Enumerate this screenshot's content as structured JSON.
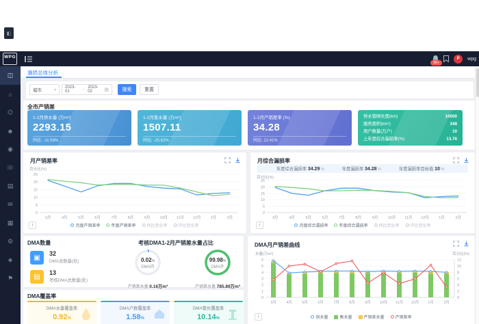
{
  "widget_glyph": "◧",
  "logo": {
    "text": "WPG",
    "sub": "· · · · · ·"
  },
  "topbar": {
    "badge": "99+",
    "username": "wpg",
    "avatar_initial": "P"
  },
  "sidebar": {
    "items": [
      {
        "name": "dashboard",
        "glyph": "◫"
      },
      {
        "name": "home",
        "glyph": "⌂"
      },
      {
        "name": "network",
        "glyph": "⌬"
      },
      {
        "name": "user",
        "glyph": "☻"
      },
      {
        "name": "monitor",
        "glyph": "◉"
      },
      {
        "name": "support",
        "glyph": "☏"
      },
      {
        "name": "report",
        "glyph": "▤"
      },
      {
        "name": "mail",
        "glyph": "✉"
      },
      {
        "name": "archive",
        "glyph": "▦"
      },
      {
        "name": "settings",
        "glyph": "⚙"
      },
      {
        "name": "assets",
        "glyph": "◈"
      },
      {
        "name": "flag",
        "glyph": "⚑"
      }
    ]
  },
  "tab": {
    "label": "漏损总体分析"
  },
  "filters": {
    "city_label": "城市",
    "caret": "▾",
    "date_start": "2023-01",
    "date_sep": "→",
    "date_end": "2023-02",
    "calendar_glyph": "▦",
    "search": "搜索",
    "reset": "重置"
  },
  "kpi": {
    "section_title": "全市产销差",
    "cards": [
      {
        "label": "1-2月供水量 (万m³)",
        "value": "2293.15",
        "sub": "同比: -11.58%"
      },
      {
        "label": "1-2月售水量 (万m³)",
        "value": "1507.11",
        "sub": "同比: -25.62%"
      },
      {
        "label": "1-2月产销差率 (%)",
        "value": "34.28",
        "sub": "同比: 12.41%"
      }
    ],
    "info_card": {
      "rows": [
        {
          "label": "供水管网长度(km)",
          "value": "10000"
        },
        {
          "label": "服务面积(km²)",
          "value": "348"
        },
        {
          "label": "用户数量(万户)",
          "value": "10"
        },
        {
          "label": "上年度综合漏损率(%)",
          "value": "13.76"
        }
      ]
    }
  },
  "charts": {
    "left": {
      "title": "月产销差率",
      "ylabel": "百分比(%)",
      "info": "i"
    },
    "right": {
      "title": "月综合漏损率",
      "ylabel": "百分比(%)",
      "info": "i",
      "stats": [
        {
          "label": "年度综合漏损率",
          "value": "34.29",
          "unit": "%"
        },
        {
          "label": "年度漏损率",
          "value": "34.28",
          "unit": "%"
        },
        {
          "label": "年度漏损率目标值",
          "value": "10",
          "unit": "%"
        }
      ]
    }
  },
  "dma": {
    "count": {
      "title": "DMA数量",
      "items": [
        {
          "value": "32",
          "label": "DMA总数量(处)",
          "color": "#409eff",
          "glyph": "▣"
        },
        {
          "value": "13",
          "label": "考核DMA总数量(处)",
          "color": "#fdc330",
          "glyph": "▤"
        }
      ]
    },
    "ratio": {
      "title": "考核DMA1-2月产销差水量占比",
      "donuts": [
        {
          "pct": 0.02,
          "value": "0.02",
          "unit": "%",
          "label": "DMA内",
          "sub_label": "产销差水量",
          "sub_value": "0.16万m³",
          "color": "#4a8af4"
        },
        {
          "pct": 99.98,
          "value": "99.98",
          "unit": "%",
          "label": "DMA外",
          "sub_label": "产销差水量",
          "sub_value": "785.89万m³",
          "color": "#4cc06c"
        }
      ]
    },
    "coverage": {
      "title": "DMA覆盖率",
      "cards": [
        {
          "label": "DMA水量覆盖率",
          "value": "0.92",
          "unit": "%",
          "color": "#f5b723",
          "bg": "#fefbf0",
          "wm": "drop"
        },
        {
          "label": "DMA户数覆盖率",
          "value": "1.58",
          "unit": "%",
          "color": "#459df5",
          "bg": "#f2f8fe",
          "wm": "house"
        },
        {
          "label": "DMA管长覆盖率",
          "value": "10.14",
          "unit": "%",
          "color": "#27b89f",
          "bg": "#effbf8",
          "wm": "pipe"
        }
      ]
    },
    "curve": {
      "title": "DMA月产销差曲线",
      "ylabel_left": "水量(万m³)",
      "ylabel_right": "百分比(%)",
      "info": "i"
    }
  },
  "chart_data": [
    {
      "type": "line",
      "title": "月产销差率",
      "ylabel": "百分比(%)",
      "ylim": [
        0,
        25
      ],
      "ystep": 5,
      "categories": [
        "3月",
        "4月",
        "5月",
        "6月",
        "7月",
        "8月",
        "9月",
        "10月",
        "11月",
        "12月",
        "1月",
        "2月"
      ],
      "series": [
        {
          "name": "月度产销差率",
          "color": "#4f9ef0",
          "values": [
            21,
            17.3,
            13.5,
            17.5,
            19,
            19,
            17,
            16,
            15.5,
            11.5,
            12.5,
            13
          ]
        },
        {
          "name": "年度产销差率",
          "color": "#7fd17f",
          "values": [
            21.6,
            20.5,
            19.5,
            18,
            18.4,
            18.4,
            18,
            17.9,
            16,
            13.5,
            11,
            12
          ]
        }
      ],
      "legend": [
        {
          "label": "月度产销差率",
          "color": "#4f9ef0",
          "shape": "line",
          "off": false
        },
        {
          "label": "年度产销差率",
          "color": "#7fd17f",
          "shape": "line",
          "off": false
        },
        {
          "label": "同比变化率",
          "color": "#c0c4cc",
          "shape": "line",
          "off": true
        },
        {
          "label": "环比变化率",
          "color": "#c0c4cc",
          "shape": "line",
          "off": true
        }
      ]
    },
    {
      "type": "line",
      "title": "月综合漏损率",
      "ylabel": "百分比(%)",
      "ylim": [
        0,
        25
      ],
      "ystep": 5,
      "categories": [
        "3月",
        "4月",
        "5月",
        "6月",
        "7月",
        "8月",
        "9月",
        "10月",
        "11月",
        "12月",
        "1月",
        "2月"
      ],
      "series": [
        {
          "name": "月度综合漏损率",
          "color": "#4f9ef0",
          "values": [
            19.5,
            15,
            13.5,
            17,
            19,
            19,
            17,
            16,
            15.5,
            11.5,
            12.5,
            13
          ]
        },
        {
          "name": "年度综合漏损率",
          "color": "#7fd17f",
          "values": [
            20.3,
            19.5,
            18.5,
            16.8,
            17,
            17.4,
            17.2,
            16.5,
            15.5,
            12.5,
            11.5,
            11.8
          ]
        }
      ],
      "legend": [
        {
          "label": "月度综合漏损率",
          "color": "#4f9ef0",
          "shape": "line",
          "off": false
        },
        {
          "label": "年度综合漏损率",
          "color": "#7fd17f",
          "shape": "line",
          "off": false
        },
        {
          "label": "同比变化率",
          "color": "#c0c4cc",
          "shape": "line",
          "off": true
        },
        {
          "label": "环比变化率",
          "color": "#c0c4cc",
          "shape": "line",
          "off": true
        }
      ]
    },
    {
      "type": "combo",
      "title": "DMA月产销差曲线",
      "ylim_left": [
        0,
        6
      ],
      "ystep_left": 1,
      "ylim_right": [
        0,
        12
      ],
      "ystep_right": 2,
      "categories": [
        "3月",
        "4月",
        "5月",
        "6月",
        "7月",
        "8月",
        "9月",
        "10月",
        "11月",
        "12月",
        "1月",
        "2月"
      ],
      "bars": [
        {
          "name": "售水量",
          "color": "#7ec964",
          "values": [
            5.5,
            3.65,
            3.75,
            3.9,
            3.9,
            3.85,
            3.9,
            3.95,
            3.9,
            3.95,
            3.8,
            3.75
          ]
        },
        {
          "name": "产销差水量",
          "color": "#f7c843",
          "values": [
            0.35,
            0.25,
            0.3,
            0.25,
            0.3,
            0.35,
            0.2,
            0.25,
            0.25,
            0.25,
            0.35,
            0.25
          ]
        }
      ],
      "lines": [
        {
          "name": "供水量",
          "color": "#57a7f7",
          "axis": "left",
          "values": [
            5.85,
            3.9,
            4.05,
            4.15,
            4.2,
            4.2,
            4.1,
            4.2,
            4.15,
            4.2,
            4.15,
            4.0
          ]
        },
        {
          "name": "产销差率",
          "color": "#ee6666",
          "axis": "right",
          "values": [
            5.6,
            10,
            10.6,
            8.2,
            10.8,
            11.6,
            4.6,
            7.8,
            4.4,
            5.9,
            10.3,
            3.3
          ]
        }
      ],
      "legend": [
        {
          "label": "供水量",
          "color": "#57a7f7",
          "shape": "line",
          "off": false
        },
        {
          "label": "售水量",
          "color": "#7ec964",
          "shape": "bar",
          "off": false
        },
        {
          "label": "产销差水量",
          "color": "#f7c843",
          "shape": "bar",
          "off": false
        },
        {
          "label": "产销差率",
          "color": "#ee6666",
          "shape": "line",
          "off": false
        }
      ]
    },
    {
      "type": "pie",
      "title": "考核DMA1-2月产销差水量占比",
      "slices": [
        {
          "label": "DMA内",
          "value": 0.02
        },
        {
          "label": "DMA外",
          "value": 99.98
        }
      ]
    }
  ]
}
